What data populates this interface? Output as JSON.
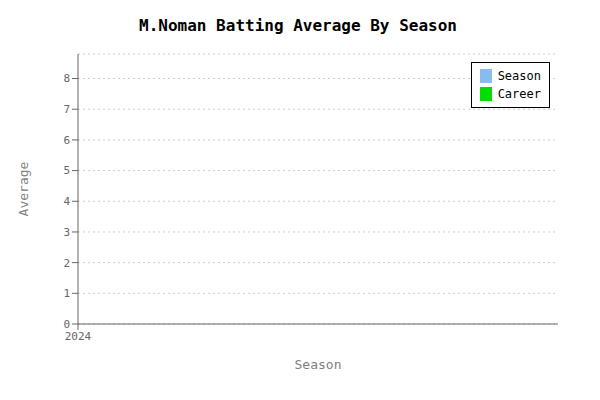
{
  "chart_data": {
    "type": "bar",
    "title": "M.Noman Batting Average By Season",
    "x_label": "Season",
    "y_label": "Average",
    "x": [],
    "series": [
      {
        "name": "Season",
        "color": "#88BBEE",
        "values": []
      },
      {
        "name": "Career",
        "color": "#00DD00",
        "values": []
      }
    ],
    "xlim": [
      2024,
      2025
    ],
    "xticks": [
      2024
    ],
    "ylim": [
      0,
      8.8
    ],
    "yticks": [
      0,
      1,
      2,
      3,
      4,
      5,
      6,
      7,
      8
    ],
    "grid": true,
    "legend": "upper right"
  }
}
